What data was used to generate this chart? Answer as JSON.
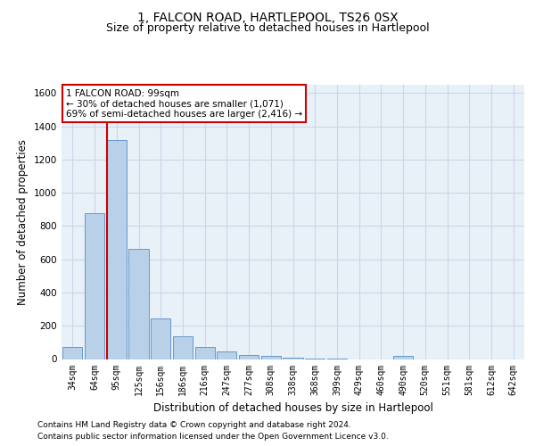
{
  "title": "1, FALCON ROAD, HARTLEPOOL, TS26 0SX",
  "subtitle": "Size of property relative to detached houses in Hartlepool",
  "xlabel": "Distribution of detached houses by size in Hartlepool",
  "ylabel": "Number of detached properties",
  "categories": [
    "34sqm",
    "64sqm",
    "95sqm",
    "125sqm",
    "156sqm",
    "186sqm",
    "216sqm",
    "247sqm",
    "277sqm",
    "308sqm",
    "338sqm",
    "368sqm",
    "399sqm",
    "429sqm",
    "460sqm",
    "490sqm",
    "520sqm",
    "551sqm",
    "581sqm",
    "612sqm",
    "642sqm"
  ],
  "values": [
    75,
    875,
    1315,
    665,
    245,
    135,
    75,
    45,
    22,
    20,
    7,
    2,
    2,
    0,
    0,
    20,
    0,
    0,
    0,
    0,
    0
  ],
  "bar_color": "#b8d0e8",
  "bar_edge_color": "#6699cc",
  "property_line_index": 2,
  "annotation_text": "1 FALCON ROAD: 99sqm\n← 30% of detached houses are smaller (1,071)\n69% of semi-detached houses are larger (2,416) →",
  "annotation_box_color": "#ffffff",
  "annotation_box_edge_color": "#cc0000",
  "vline_color": "#cc0000",
  "ylim": [
    0,
    1650
  ],
  "yticks": [
    0,
    200,
    400,
    600,
    800,
    1000,
    1200,
    1400,
    1600
  ],
  "grid_color": "#c8d8e8",
  "background_color": "#e8f0f8",
  "footer_line1": "Contains HM Land Registry data © Crown copyright and database right 2024.",
  "footer_line2": "Contains public sector information licensed under the Open Government Licence v3.0.",
  "title_fontsize": 10,
  "subtitle_fontsize": 9,
  "xlabel_fontsize": 8.5,
  "ylabel_fontsize": 8.5,
  "tick_fontsize": 7.5,
  "xtick_fontsize": 7
}
